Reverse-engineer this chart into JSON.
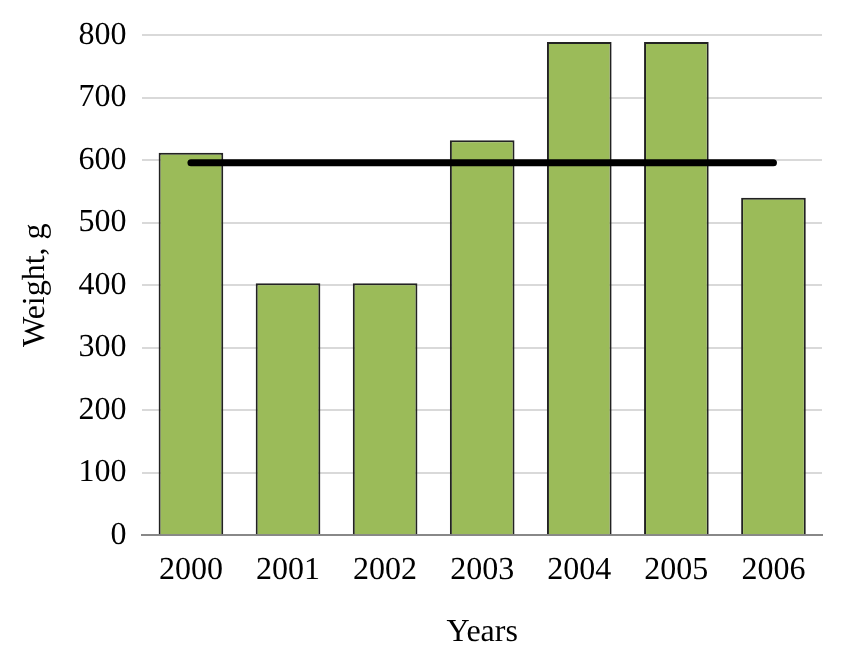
{
  "chart_data": {
    "type": "bar",
    "xlabel": "Years",
    "ylabel": "Weight, g",
    "categories": [
      "2000",
      "2001",
      "2002",
      "2003",
      "2004",
      "2005",
      "2006"
    ],
    "series": [
      {
        "color": "#9bbb59",
        "values": [
          612,
          403,
          403,
          632,
          789,
          789,
          540
        ]
      },
      {
        "type": "line",
        "color": "#000000",
        "values": [
          596,
          596,
          596,
          596,
          596,
          596,
          596
        ]
      }
    ],
    "ylim": [
      0,
      800
    ],
    "yticks": [
      0,
      100,
      200,
      300,
      400,
      500,
      600,
      700,
      800
    ],
    "grid": "y",
    "legend": false,
    "marker": "none"
  }
}
